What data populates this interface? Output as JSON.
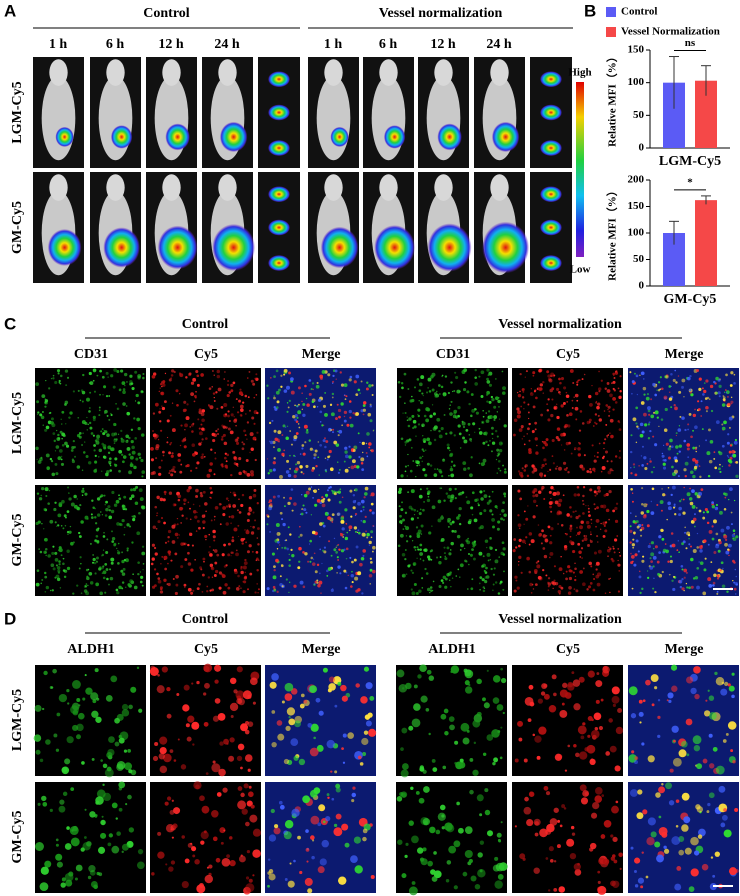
{
  "figure": {
    "A": {
      "label": "A",
      "groups": [
        "Control",
        "Vessel normalization"
      ],
      "timepoints": [
        "1 h",
        "6 h",
        "12 h",
        "24 h"
      ],
      "rows": [
        "LGM-Cy5",
        "GM-Cy5"
      ],
      "scale_high": "High",
      "scale_low": "Low"
    },
    "B": {
      "label": "B"
    },
    "C": {
      "label": "C",
      "groups": [
        "Control",
        "Vessel normalization"
      ],
      "channels": [
        "CD31",
        "Cy5",
        "Merge"
      ],
      "rows": [
        "LGM-Cy5",
        "GM-Cy5"
      ]
    },
    "D": {
      "label": "D",
      "groups": [
        "Control",
        "Vessel normalization"
      ],
      "channels": [
        "ALDH1",
        "Cy5",
        "Merge"
      ],
      "rows": [
        "LGM-Cy5",
        "GM-Cy5"
      ]
    }
  },
  "chart_data": [
    {
      "type": "bar",
      "categories": [
        "LGM-Cy5"
      ],
      "y_label": "Relative MFI（%）",
      "annotation": "ns",
      "series": [
        {
          "name": "Control",
          "color": "#5b5bf5",
          "values": [
            100
          ],
          "errors": [
            40
          ]
        },
        {
          "name": "Vessel Normalization",
          "color": "#f54848",
          "values": [
            103
          ],
          "errors": [
            23
          ]
        }
      ],
      "ylim": [
        0,
        150
      ],
      "yticks": [
        0,
        50,
        100,
        150
      ]
    },
    {
      "type": "bar",
      "categories": [
        "GM-Cy5"
      ],
      "y_label": "Relative MFI（%）",
      "annotation": "*",
      "series": [
        {
          "name": "Control",
          "color": "#5b5bf5",
          "values": [
            100
          ],
          "errors": [
            22
          ]
        },
        {
          "name": "Vessel Normalization",
          "color": "#f54848",
          "values": [
            162
          ],
          "errors": [
            8
          ]
        }
      ],
      "ylim": [
        0,
        200
      ],
      "yticks": [
        0,
        50,
        100,
        150,
        200
      ]
    }
  ]
}
